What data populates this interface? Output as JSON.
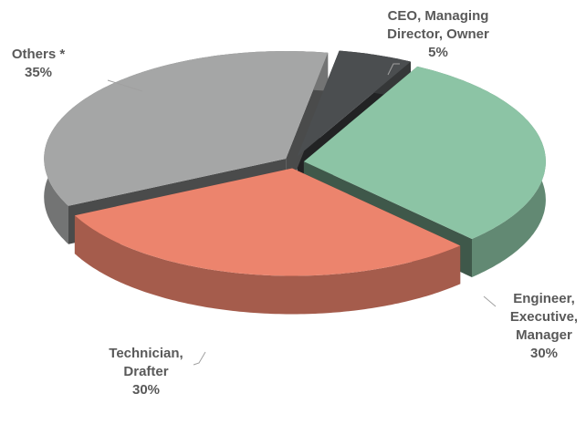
{
  "chart_data": {
    "type": "pie",
    "categories": [
      "CEO, Managing Director, Owner",
      "Engineer, Executive, Manager",
      "Technician, Drafter",
      "Others *"
    ],
    "values": [
      5,
      30,
      30,
      35
    ],
    "value_labels": [
      "5%",
      "30%",
      "30%",
      "35%"
    ],
    "colors": [
      "#4b4e50",
      "#8cc4a5",
      "#ec846d",
      "#a5a6a6"
    ]
  }
}
